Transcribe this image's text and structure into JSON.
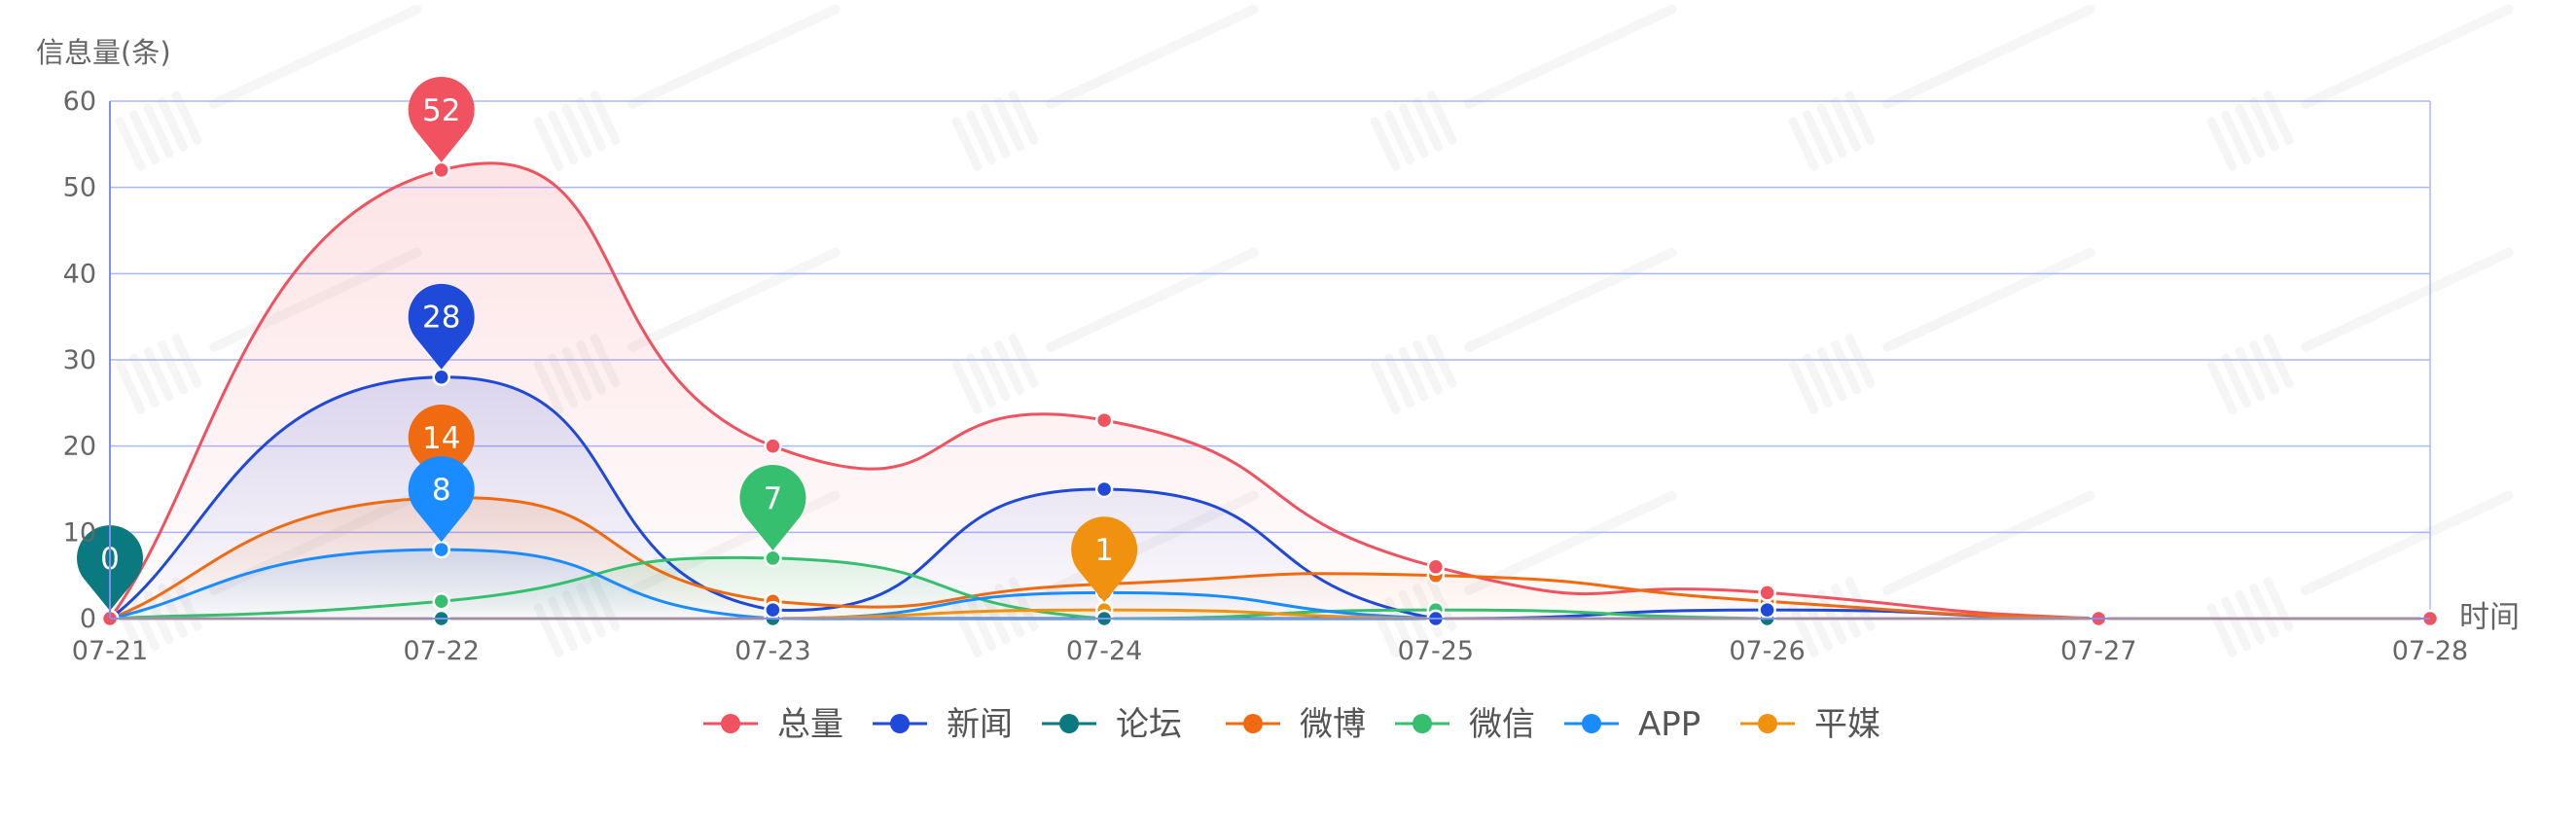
{
  "chart_data": {
    "type": "line",
    "title": "",
    "ylabel": "信息量(条)",
    "xlabel": "时间",
    "ylim": [
      0,
      60
    ],
    "yticks": [
      0,
      10,
      20,
      30,
      40,
      50,
      60
    ],
    "categories": [
      "07-21",
      "07-22",
      "07-23",
      "07-24",
      "07-25",
      "07-26",
      "07-27",
      "07-28"
    ],
    "grid": true,
    "legend_position": "bottom-center",
    "series": [
      {
        "name": "总量",
        "color": "#f0525f",
        "values": [
          0,
          52,
          20,
          23,
          6,
          3,
          0,
          0
        ],
        "max_label": "52"
      },
      {
        "name": "新闻",
        "color": "#1f49d8",
        "values": [
          0,
          28,
          1,
          15,
          0,
          1,
          0,
          0
        ],
        "max_label": "28"
      },
      {
        "name": "论坛",
        "color": "#0a7a80",
        "values": [
          0,
          0,
          0,
          0,
          0,
          0,
          0,
          0
        ],
        "max_label": "0"
      },
      {
        "name": "微博",
        "color": "#ef6a11",
        "values": [
          0,
          14,
          2,
          4,
          5,
          2,
          0,
          0
        ],
        "max_label": "14"
      },
      {
        "name": "微信",
        "color": "#36bf6e",
        "values": [
          0,
          2,
          7,
          0,
          1,
          0,
          0,
          0
        ],
        "max_label": "7"
      },
      {
        "name": "APP",
        "color": "#1a8cff",
        "values": [
          0,
          8,
          0,
          3,
          0,
          0,
          0,
          0
        ],
        "max_label": "8"
      },
      {
        "name": "平媒",
        "color": "#f0920f",
        "values": [
          0,
          0,
          0,
          1,
          0,
          0,
          0,
          0
        ],
        "max_label": "1"
      }
    ]
  }
}
